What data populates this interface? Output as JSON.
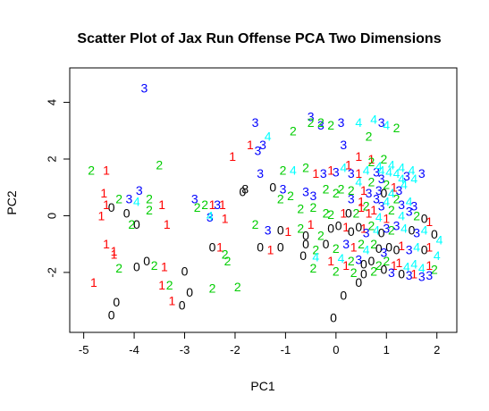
{
  "chart_data": {
    "type": "scatter",
    "title": "Scatter Plot of Jax Run Offense PCA Two Dimensions",
    "xlabel": "PC1",
    "ylabel": "PC2",
    "xlim": [
      -5.1,
      2.2
    ],
    "ylim": [
      -3.8,
      4.9
    ],
    "xticks": [
      -5,
      -4,
      -3,
      -2,
      -1,
      0,
      1,
      2
    ],
    "yticks": [
      -2,
      0,
      2,
      4
    ],
    "grid": false,
    "legend": "none",
    "colors": {
      "0": "#000000",
      "1": "#FF0000",
      "2": "#00CD00",
      "3": "#0000FF",
      "4": "#00FFFF"
    },
    "points": [
      {
        "x": -3.8,
        "y": 4.5,
        "label": "3"
      },
      {
        "x": -1.6,
        "y": 3.3,
        "label": "3"
      },
      {
        "x": -0.5,
        "y": 3.5,
        "label": "3"
      },
      {
        "x": -0.5,
        "y": 3.3,
        "label": "2"
      },
      {
        "x": -0.3,
        "y": 3.2,
        "label": "3"
      },
      {
        "x": -0.3,
        "y": 3.3,
        "label": "2"
      },
      {
        "x": -0.1,
        "y": 3.2,
        "label": "2"
      },
      {
        "x": 0.1,
        "y": 3.3,
        "label": "3"
      },
      {
        "x": 0.45,
        "y": 3.3,
        "label": "4"
      },
      {
        "x": 0.75,
        "y": 3.4,
        "label": "4"
      },
      {
        "x": 0.9,
        "y": 3.3,
        "label": "3"
      },
      {
        "x": 1.0,
        "y": 3.2,
        "label": "4"
      },
      {
        "x": 1.2,
        "y": 3.1,
        "label": "2"
      },
      {
        "x": -0.85,
        "y": 3.0,
        "label": "2"
      },
      {
        "x": -1.35,
        "y": 2.8,
        "label": "4"
      },
      {
        "x": -1.45,
        "y": 2.5,
        "label": "3"
      },
      {
        "x": -1.7,
        "y": 2.5,
        "label": "1"
      },
      {
        "x": -1.55,
        "y": 2.3,
        "label": "3"
      },
      {
        "x": -2.05,
        "y": 2.1,
        "label": "1"
      },
      {
        "x": -3.5,
        "y": 1.8,
        "label": "2"
      },
      {
        "x": -4.85,
        "y": 1.6,
        "label": "2"
      },
      {
        "x": -4.55,
        "y": 1.6,
        "label": "1"
      },
      {
        "x": -1.5,
        "y": 1.5,
        "label": "3"
      },
      {
        "x": -1.05,
        "y": 1.6,
        "label": "2"
      },
      {
        "x": -0.85,
        "y": 1.6,
        "label": "4"
      },
      {
        "x": -0.6,
        "y": 1.7,
        "label": "2"
      },
      {
        "x": -0.4,
        "y": 1.5,
        "label": "1"
      },
      {
        "x": -0.25,
        "y": 1.5,
        "label": "3"
      },
      {
        "x": -0.1,
        "y": 1.6,
        "label": "1"
      },
      {
        "x": 0.0,
        "y": 1.55,
        "label": "3"
      },
      {
        "x": 0.15,
        "y": 1.7,
        "label": "4"
      },
      {
        "x": 0.3,
        "y": 1.5,
        "label": "3"
      },
      {
        "x": 0.45,
        "y": 1.5,
        "label": "1"
      },
      {
        "x": 0.6,
        "y": 1.6,
        "label": "4"
      },
      {
        "x": 0.8,
        "y": 1.55,
        "label": "3"
      },
      {
        "x": 0.9,
        "y": 1.6,
        "label": "4"
      },
      {
        "x": 1.05,
        "y": 1.55,
        "label": "4"
      },
      {
        "x": 1.2,
        "y": 1.5,
        "label": "4"
      },
      {
        "x": 1.4,
        "y": 1.4,
        "label": "3"
      },
      {
        "x": 1.55,
        "y": 1.3,
        "label": "4"
      },
      {
        "x": 0.15,
        "y": 2.5,
        "label": "3"
      },
      {
        "x": 0.45,
        "y": 2.1,
        "label": "1"
      },
      {
        "x": 0.25,
        "y": 1.8,
        "label": "1"
      },
      {
        "x": 0.7,
        "y": 2.0,
        "label": "1"
      },
      {
        "x": 0.95,
        "y": 2.0,
        "label": "2"
      },
      {
        "x": 0.7,
        "y": 1.9,
        "label": "2"
      },
      {
        "x": 0.85,
        "y": 1.75,
        "label": "4"
      },
      {
        "x": 1.1,
        "y": 1.8,
        "label": "4"
      },
      {
        "x": 1.3,
        "y": 1.7,
        "label": "4"
      },
      {
        "x": 1.5,
        "y": 1.6,
        "label": "4"
      },
      {
        "x": 1.7,
        "y": 1.5,
        "label": "3"
      },
      {
        "x": 0.65,
        "y": 2.8,
        "label": "2"
      },
      {
        "x": 1.3,
        "y": 1.3,
        "label": "4"
      },
      {
        "x": 0.45,
        "y": 1.2,
        "label": "4"
      },
      {
        "x": 0.7,
        "y": 1.2,
        "label": "2"
      },
      {
        "x": 0.9,
        "y": 1.3,
        "label": "3"
      },
      {
        "x": 1.0,
        "y": 1.1,
        "label": "2"
      },
      {
        "x": 1.15,
        "y": 1.0,
        "label": "1"
      },
      {
        "x": 1.25,
        "y": 0.9,
        "label": "3"
      },
      {
        "x": 1.35,
        "y": 1.1,
        "label": "4"
      },
      {
        "x": 0.3,
        "y": 0.9,
        "label": "2"
      },
      {
        "x": 0.55,
        "y": 0.9,
        "label": "1"
      },
      {
        "x": 0.65,
        "y": 0.8,
        "label": "3"
      },
      {
        "x": 0.85,
        "y": 0.9,
        "label": "3"
      },
      {
        "x": 0.95,
        "y": 0.8,
        "label": "0"
      },
      {
        "x": 1.1,
        "y": 0.8,
        "label": "4"
      },
      {
        "x": -3.9,
        "y": 0.9,
        "label": "3"
      },
      {
        "x": -4.1,
        "y": 0.6,
        "label": "3"
      },
      {
        "x": -3.7,
        "y": 0.6,
        "label": "2"
      },
      {
        "x": -3.45,
        "y": 0.4,
        "label": "1"
      },
      {
        "x": -3.95,
        "y": 0.5,
        "label": "4"
      },
      {
        "x": -4.6,
        "y": 0.8,
        "label": "1"
      },
      {
        "x": -4.3,
        "y": 0.6,
        "label": "2"
      },
      {
        "x": -4.45,
        "y": 0.3,
        "label": "0"
      },
      {
        "x": -4.55,
        "y": 0.4,
        "label": "1"
      },
      {
        "x": -4.65,
        "y": 0.0,
        "label": "1"
      },
      {
        "x": -4.15,
        "y": 0.1,
        "label": "0"
      },
      {
        "x": -3.95,
        "y": -0.3,
        "label": "0"
      },
      {
        "x": -4.05,
        "y": -0.3,
        "label": "2"
      },
      {
        "x": -3.7,
        "y": 0.2,
        "label": "2"
      },
      {
        "x": -3.35,
        "y": -0.3,
        "label": "1"
      },
      {
        "x": -2.8,
        "y": 0.6,
        "label": "3"
      },
      {
        "x": -2.6,
        "y": 0.4,
        "label": "2"
      },
      {
        "x": -2.45,
        "y": 0.4,
        "label": "1"
      },
      {
        "x": -2.35,
        "y": 0.4,
        "label": "3"
      },
      {
        "x": -2.25,
        "y": 0.4,
        "label": "1"
      },
      {
        "x": -2.5,
        "y": -0.05,
        "label": "3"
      },
      {
        "x": -2.5,
        "y": 0.0,
        "label": "4"
      },
      {
        "x": -2.75,
        "y": 0.3,
        "label": "2"
      },
      {
        "x": -2.2,
        "y": -0.1,
        "label": "1"
      },
      {
        "x": -1.85,
        "y": 0.85,
        "label": "0"
      },
      {
        "x": -1.8,
        "y": 0.95,
        "label": "8"
      },
      {
        "x": -1.25,
        "y": 1.0,
        "label": "0"
      },
      {
        "x": -1.05,
        "y": 0.95,
        "label": "3"
      },
      {
        "x": -1.1,
        "y": 0.6,
        "label": "2"
      },
      {
        "x": -0.9,
        "y": 0.7,
        "label": "2"
      },
      {
        "x": -0.6,
        "y": 0.85,
        "label": "3"
      },
      {
        "x": -0.45,
        "y": 0.7,
        "label": "3"
      },
      {
        "x": -0.2,
        "y": 0.95,
        "label": "2"
      },
      {
        "x": 0.0,
        "y": 0.8,
        "label": "2"
      },
      {
        "x": 0.1,
        "y": 0.95,
        "label": "2"
      },
      {
        "x": 0.3,
        "y": 0.6,
        "label": "3"
      },
      {
        "x": 0.5,
        "y": 0.5,
        "label": "1"
      },
      {
        "x": 0.6,
        "y": 0.35,
        "label": "2"
      },
      {
        "x": 0.8,
        "y": 0.6,
        "label": "3"
      },
      {
        "x": 0.9,
        "y": 0.35,
        "label": "3"
      },
      {
        "x": 1.0,
        "y": 0.5,
        "label": "4"
      },
      {
        "x": 1.2,
        "y": 0.6,
        "label": "2"
      },
      {
        "x": 1.3,
        "y": 0.4,
        "label": "3"
      },
      {
        "x": 1.45,
        "y": 0.5,
        "label": "4"
      },
      {
        "x": 1.55,
        "y": 0.35,
        "label": "3"
      },
      {
        "x": -0.7,
        "y": 0.25,
        "label": "2"
      },
      {
        "x": -0.45,
        "y": 0.3,
        "label": "2"
      },
      {
        "x": -0.2,
        "y": 0.1,
        "label": "2"
      },
      {
        "x": -0.1,
        "y": 0.05,
        "label": "2"
      },
      {
        "x": 0.15,
        "y": 0.1,
        "label": "1"
      },
      {
        "x": 0.25,
        "y": 0.1,
        "label": "0"
      },
      {
        "x": 0.4,
        "y": 0.1,
        "label": "2"
      },
      {
        "x": 0.5,
        "y": 0.3,
        "label": "1"
      },
      {
        "x": 0.65,
        "y": 0.1,
        "label": "1"
      },
      {
        "x": 0.75,
        "y": 0.2,
        "label": "1"
      },
      {
        "x": 0.85,
        "y": -0.05,
        "label": "4"
      },
      {
        "x": 1.0,
        "y": -0.1,
        "label": "1"
      },
      {
        "x": 1.1,
        "y": 0.2,
        "label": "2"
      },
      {
        "x": 1.3,
        "y": 0.0,
        "label": "4"
      },
      {
        "x": 1.45,
        "y": 0.15,
        "label": "3"
      },
      {
        "x": 1.6,
        "y": 0.0,
        "label": "2"
      },
      {
        "x": 1.75,
        "y": -0.1,
        "label": "0"
      },
      {
        "x": 1.85,
        "y": -0.2,
        "label": "1"
      },
      {
        "x": -1.6,
        "y": -0.3,
        "label": "2"
      },
      {
        "x": -1.35,
        "y": -0.5,
        "label": "3"
      },
      {
        "x": -1.1,
        "y": -0.5,
        "label": "0"
      },
      {
        "x": -0.95,
        "y": -0.55,
        "label": "1"
      },
      {
        "x": -0.7,
        "y": -0.45,
        "label": "2"
      },
      {
        "x": -0.6,
        "y": -0.7,
        "label": "0"
      },
      {
        "x": -0.5,
        "y": -0.3,
        "label": "1"
      },
      {
        "x": -0.3,
        "y": -0.7,
        "label": "2"
      },
      {
        "x": -0.1,
        "y": -0.45,
        "label": "0"
      },
      {
        "x": 0.05,
        "y": -0.35,
        "label": "0"
      },
      {
        "x": 0.2,
        "y": -0.4,
        "label": "1"
      },
      {
        "x": 0.3,
        "y": -0.55,
        "label": "0"
      },
      {
        "x": 0.45,
        "y": -0.4,
        "label": "0"
      },
      {
        "x": 0.55,
        "y": -0.45,
        "label": "1"
      },
      {
        "x": 0.6,
        "y": -0.6,
        "label": "3"
      },
      {
        "x": 0.7,
        "y": -0.35,
        "label": "2"
      },
      {
        "x": 0.8,
        "y": -0.5,
        "label": "4"
      },
      {
        "x": 0.9,
        "y": -0.6,
        "label": "0"
      },
      {
        "x": 1.0,
        "y": -0.45,
        "label": "3"
      },
      {
        "x": 1.1,
        "y": -0.5,
        "label": "2"
      },
      {
        "x": 1.2,
        "y": -0.35,
        "label": "3"
      },
      {
        "x": 1.35,
        "y": -0.45,
        "label": "4"
      },
      {
        "x": 1.5,
        "y": -0.5,
        "label": "0"
      },
      {
        "x": 1.6,
        "y": -0.6,
        "label": "3"
      },
      {
        "x": 1.75,
        "y": -0.5,
        "label": "4"
      },
      {
        "x": 1.95,
        "y": -0.65,
        "label": "0"
      },
      {
        "x": 2.05,
        "y": -0.85,
        "label": "4"
      },
      {
        "x": -4.55,
        "y": -1.0,
        "label": "1"
      },
      {
        "x": -4.4,
        "y": -1.25,
        "label": "1"
      },
      {
        "x": -4.4,
        "y": -1.35,
        "label": "1"
      },
      {
        "x": -4.3,
        "y": -1.85,
        "label": "2"
      },
      {
        "x": -3.95,
        "y": -1.8,
        "label": "0"
      },
      {
        "x": -3.75,
        "y": -1.6,
        "label": "0"
      },
      {
        "x": -3.6,
        "y": -1.75,
        "label": "2"
      },
      {
        "x": -3.4,
        "y": -1.8,
        "label": "1"
      },
      {
        "x": -3.0,
        "y": -1.95,
        "label": "0"
      },
      {
        "x": -2.45,
        "y": -1.1,
        "label": "0"
      },
      {
        "x": -2.3,
        "y": -1.1,
        "label": "1"
      },
      {
        "x": -2.2,
        "y": -1.35,
        "label": "2"
      },
      {
        "x": -2.15,
        "y": -1.6,
        "label": "2"
      },
      {
        "x": -4.8,
        "y": -2.35,
        "label": "1"
      },
      {
        "x": -3.45,
        "y": -2.45,
        "label": "1"
      },
      {
        "x": -3.3,
        "y": -2.45,
        "label": "2"
      },
      {
        "x": -2.45,
        "y": -2.55,
        "label": "2"
      },
      {
        "x": -1.95,
        "y": -2.5,
        "label": "2"
      },
      {
        "x": -2.9,
        "y": -2.7,
        "label": "0"
      },
      {
        "x": -3.25,
        "y": -3.0,
        "label": "1"
      },
      {
        "x": -3.05,
        "y": -3.15,
        "label": "0"
      },
      {
        "x": -4.35,
        "y": -3.05,
        "label": "0"
      },
      {
        "x": -4.45,
        "y": -3.5,
        "label": "0"
      },
      {
        "x": -1.5,
        "y": -1.1,
        "label": "0"
      },
      {
        "x": -1.3,
        "y": -1.2,
        "label": "1"
      },
      {
        "x": -1.1,
        "y": -1.1,
        "label": "0"
      },
      {
        "x": -0.6,
        "y": -1.0,
        "label": "0"
      },
      {
        "x": -0.4,
        "y": -1.2,
        "label": "2"
      },
      {
        "x": -0.2,
        "y": -1.0,
        "label": "0"
      },
      {
        "x": 0.0,
        "y": -1.15,
        "label": "2"
      },
      {
        "x": 0.2,
        "y": -1.0,
        "label": "3"
      },
      {
        "x": 0.35,
        "y": -1.1,
        "label": "1"
      },
      {
        "x": 0.5,
        "y": -1.0,
        "label": "2"
      },
      {
        "x": 0.6,
        "y": -1.2,
        "label": "4"
      },
      {
        "x": 0.75,
        "y": -1.0,
        "label": "2"
      },
      {
        "x": 0.85,
        "y": -1.15,
        "label": "0"
      },
      {
        "x": 0.95,
        "y": -1.3,
        "label": "3"
      },
      {
        "x": 1.05,
        "y": -1.1,
        "label": "0"
      },
      {
        "x": 1.2,
        "y": -1.2,
        "label": "0"
      },
      {
        "x": 1.3,
        "y": -1.05,
        "label": "1"
      },
      {
        "x": 1.45,
        "y": -1.2,
        "label": "3"
      },
      {
        "x": 1.6,
        "y": -1.1,
        "label": "4"
      },
      {
        "x": 1.75,
        "y": -1.2,
        "label": "0"
      },
      {
        "x": 1.85,
        "y": -1.1,
        "label": "1"
      },
      {
        "x": 2.0,
        "y": -1.4,
        "label": "4"
      },
      {
        "x": -0.65,
        "y": -1.4,
        "label": "0"
      },
      {
        "x": -0.4,
        "y": -1.45,
        "label": "4"
      },
      {
        "x": -0.1,
        "y": -1.6,
        "label": "1"
      },
      {
        "x": 0.1,
        "y": -1.5,
        "label": "4"
      },
      {
        "x": 0.2,
        "y": -1.75,
        "label": "1"
      },
      {
        "x": 0.3,
        "y": -1.6,
        "label": "2"
      },
      {
        "x": 0.45,
        "y": -1.55,
        "label": "3"
      },
      {
        "x": 0.55,
        "y": -1.7,
        "label": "0"
      },
      {
        "x": 0.7,
        "y": -1.6,
        "label": "0"
      },
      {
        "x": 0.85,
        "y": -1.75,
        "label": "2"
      },
      {
        "x": 1.0,
        "y": -1.6,
        "label": "2"
      },
      {
        "x": 1.15,
        "y": -1.75,
        "label": "1"
      },
      {
        "x": 1.25,
        "y": -1.65,
        "label": "1"
      },
      {
        "x": 1.4,
        "y": -1.8,
        "label": "4"
      },
      {
        "x": 1.55,
        "y": -1.7,
        "label": "4"
      },
      {
        "x": 1.7,
        "y": -1.85,
        "label": "4"
      },
      {
        "x": 1.85,
        "y": -1.75,
        "label": "1"
      },
      {
        "x": 1.95,
        "y": -1.9,
        "label": "2"
      },
      {
        "x": -0.45,
        "y": -1.85,
        "label": "2"
      },
      {
        "x": 0.0,
        "y": -1.95,
        "label": "2"
      },
      {
        "x": 0.35,
        "y": -2.0,
        "label": "2"
      },
      {
        "x": 0.55,
        "y": -2.05,
        "label": "0"
      },
      {
        "x": 0.75,
        "y": -1.95,
        "label": "2"
      },
      {
        "x": 0.95,
        "y": -1.9,
        "label": "0"
      },
      {
        "x": 1.1,
        "y": -2.0,
        "label": "3"
      },
      {
        "x": 1.3,
        "y": -2.05,
        "label": "0"
      },
      {
        "x": 1.45,
        "y": -2.1,
        "label": "3"
      },
      {
        "x": 1.55,
        "y": -2.05,
        "label": "1"
      },
      {
        "x": 1.7,
        "y": -2.15,
        "label": "3"
      },
      {
        "x": 1.85,
        "y": -2.1,
        "label": "3"
      },
      {
        "x": 0.45,
        "y": -2.35,
        "label": "0"
      },
      {
        "x": 0.15,
        "y": -2.8,
        "label": "0"
      },
      {
        "x": -0.05,
        "y": -3.6,
        "label": "0"
      }
    ]
  }
}
